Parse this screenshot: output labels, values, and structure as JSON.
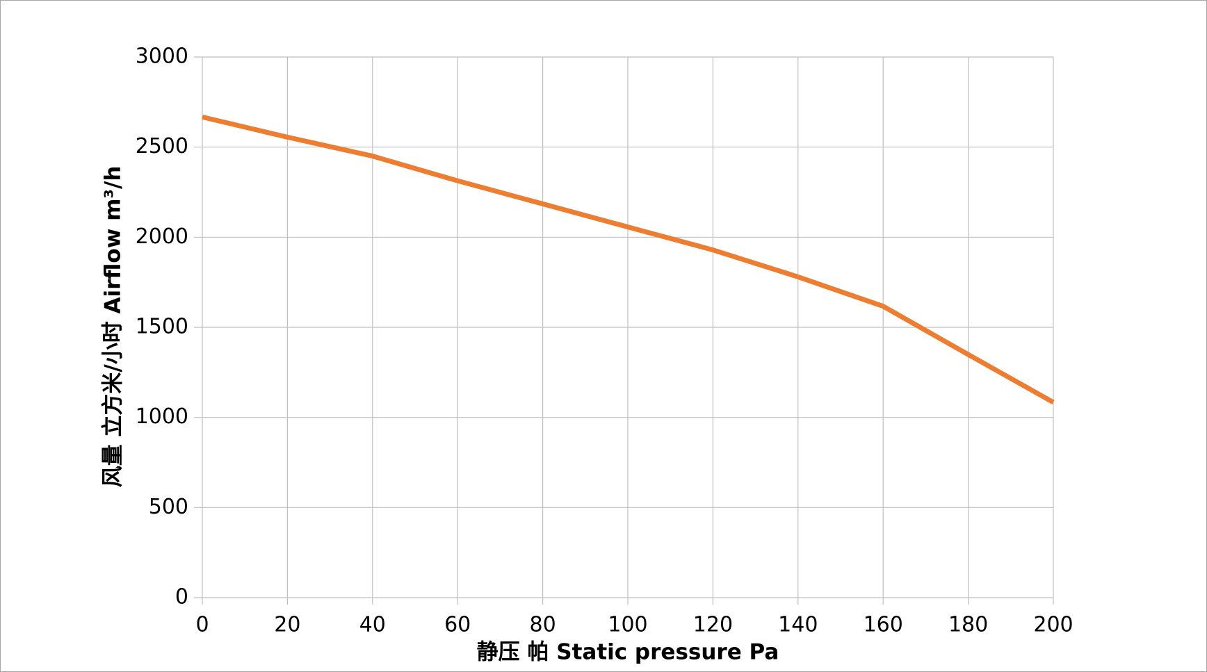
{
  "chart_data": {
    "type": "line",
    "x_label": "静压  帕 Static  pressure  Pa",
    "y_label": "风量  立方米/小时 Airflow  m³/h",
    "x": [
      0,
      20,
      40,
      60,
      80,
      100,
      120,
      140,
      160,
      180,
      200
    ],
    "series": [
      {
        "name": "Airflow",
        "color": "#ed7d31",
        "values": [
          2667,
          2555,
          2450,
          2313,
          2185,
          2057,
          1929,
          1780,
          1617,
          1349,
          1084
        ]
      }
    ],
    "xlim": [
      0,
      200
    ],
    "xticks": [
      0,
      20,
      40,
      60,
      80,
      100,
      120,
      140,
      160,
      180,
      200
    ],
    "ylim": [
      0,
      3000
    ],
    "yticks": [
      0,
      500,
      1000,
      1500,
      2000,
      2500,
      3000
    ],
    "grid": true
  }
}
